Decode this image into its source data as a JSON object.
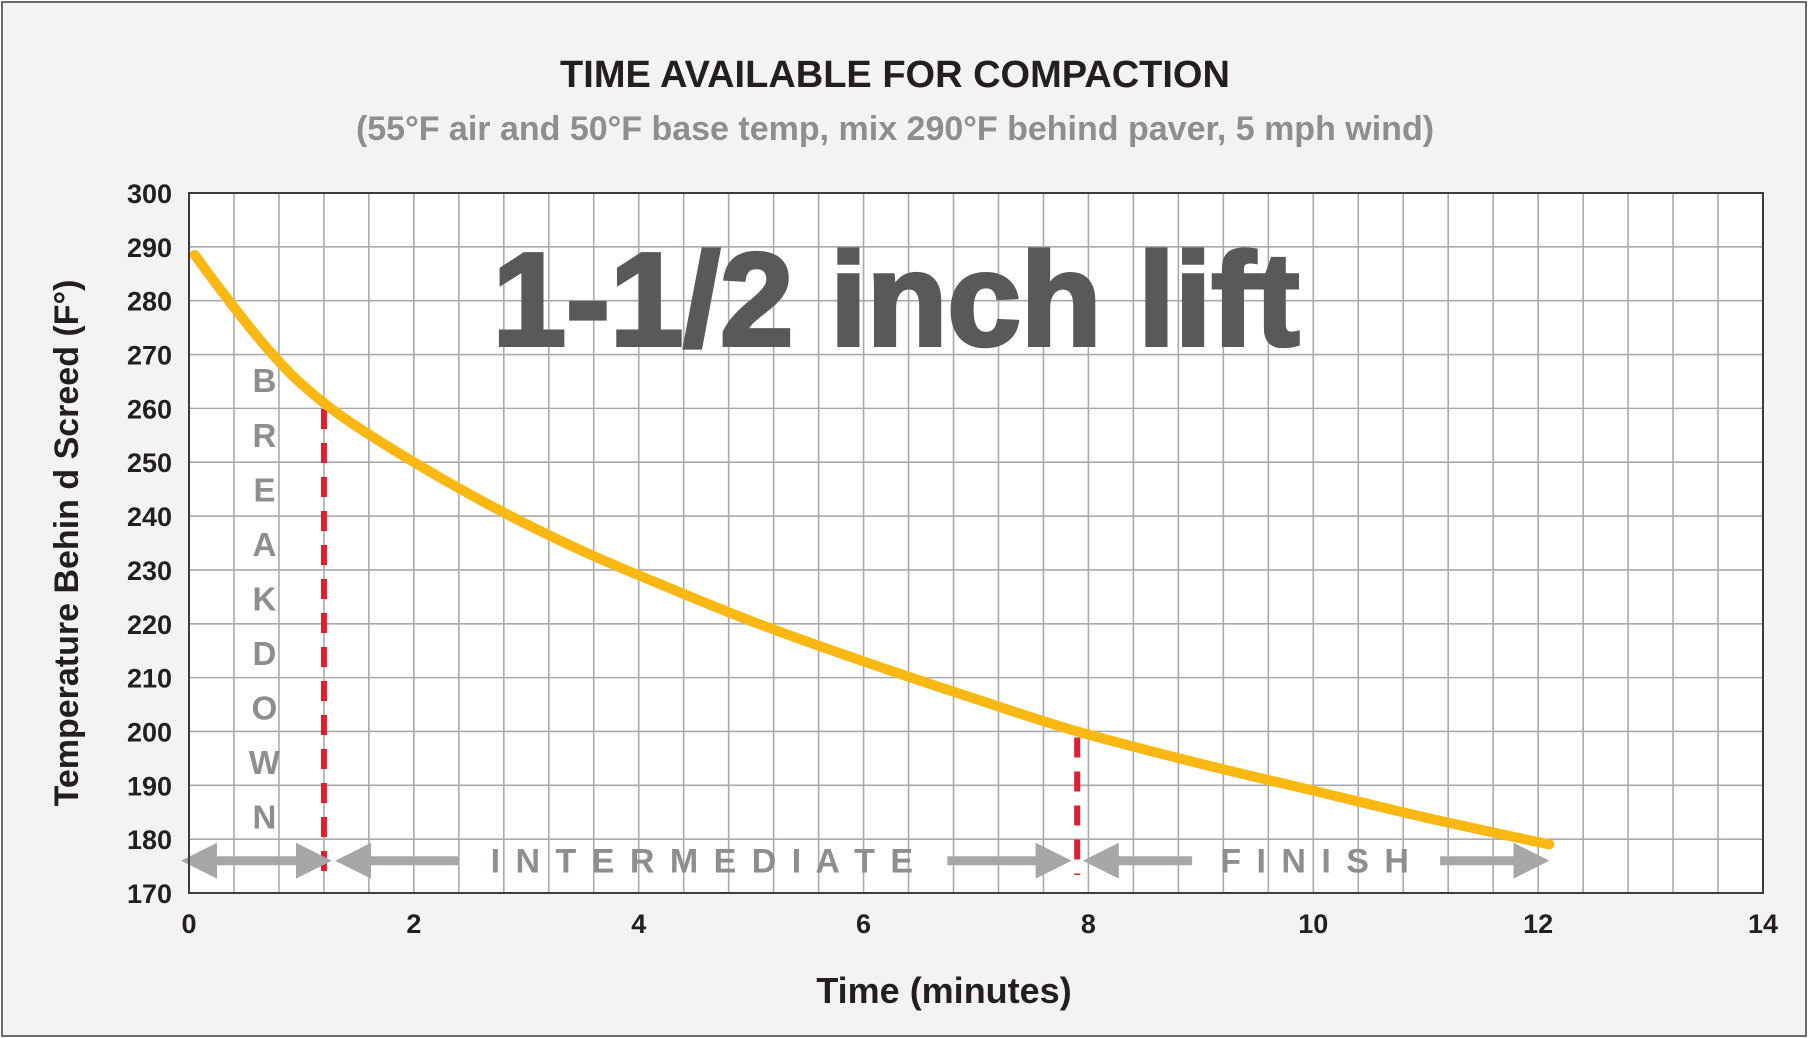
{
  "chart_data": {
    "type": "line",
    "title": "TIME AVAILABLE FOR COMPACTION",
    "subtitle": "(55°F air and 50°F base temp, mix 290°F behind paver, 5 mph wind)",
    "xlabel": "Time (minutes)",
    "ylabel": "Temperature Behin d Screed (F°)",
    "xlim": [
      0,
      14
    ],
    "ylim": [
      170,
      300
    ],
    "x_ticks": [
      0,
      2,
      4,
      6,
      8,
      10,
      12,
      14
    ],
    "y_ticks": [
      170,
      180,
      190,
      200,
      210,
      220,
      230,
      240,
      250,
      260,
      270,
      280,
      290,
      300
    ],
    "grid": true,
    "annotation": "1-1/2 inch lift",
    "series": [
      {
        "color": "#fbb813",
        "x": [
          0.05,
          0.3,
          0.6,
          0.9,
          1.2,
          1.5,
          2.0,
          2.5,
          3.0,
          3.5,
          4.0,
          5.0,
          6.0,
          7.0,
          7.9,
          9.0,
          10.0,
          11.0,
          12.1
        ],
        "y": [
          288.5,
          281.5,
          273.5,
          266.5,
          261.0,
          256.5,
          250.0,
          244.0,
          238.5,
          233.5,
          229.0,
          220.5,
          213.0,
          206.0,
          200.0,
          194.0,
          189.0,
          184.0,
          179.0
        ]
      }
    ],
    "phase_lines": [
      {
        "x": 1.2,
        "y_top": 261,
        "color": "#e01e2f"
      },
      {
        "x": 7.9,
        "y_top": 200,
        "color": "#e01e2f"
      }
    ],
    "phases": [
      {
        "label": "BREAKDOWN",
        "x_start": 0.0,
        "x_end": 1.2,
        "vertical": true
      },
      {
        "label": "INTERMEDIATE",
        "x_start": 1.3,
        "x_end": 7.85
      },
      {
        "label": "FINISH",
        "x_start": 7.95,
        "x_end": 12.1
      }
    ]
  }
}
